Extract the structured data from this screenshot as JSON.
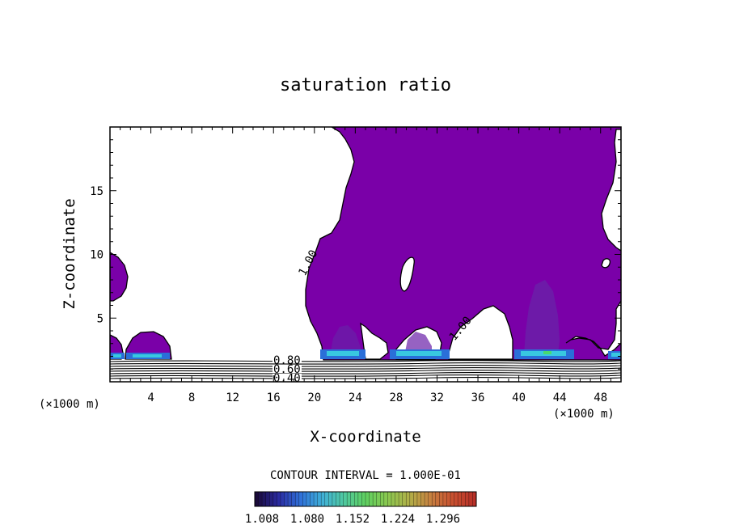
{
  "chart_data": {
    "type": "contour",
    "title": "saturation ratio",
    "xlabel": "X-coordinate",
    "ylabel": "Z-coordinate",
    "x_unit": "(×1000 m)",
    "y_unit": "(×1000 m)",
    "xlim": [
      0,
      50
    ],
    "ylim": [
      0,
      20
    ],
    "x_ticks": [
      4,
      8,
      12,
      16,
      20,
      24,
      28,
      32,
      36,
      40,
      44,
      48
    ],
    "y_ticks": [
      5,
      10,
      15
    ],
    "contour_interval": "CONTOUR INTERVAL = 1.000E-01",
    "contour_labels": [
      {
        "text": "1.00",
        "x": 19.0,
        "y": 9.3
      },
      {
        "text": "1.00",
        "x": 34.5,
        "y": 4.0
      },
      {
        "text": "0.80",
        "x": 17.0,
        "y": 1.45
      },
      {
        "text": "0.60",
        "x": 17.0,
        "y": 0.85
      },
      {
        "text": "0.40",
        "x": 17.0,
        "y": 0.25
      }
    ],
    "colorbar": {
      "tick_labels": [
        "1.008",
        "1.080",
        "1.152",
        "1.224",
        "1.296"
      ],
      "colors": [
        "#1a0a3a",
        "#2a2aa0",
        "#2f6fd8",
        "#3fb0d8",
        "#4fc8a0",
        "#5fd060",
        "#8ac850",
        "#b0b048",
        "#c88040",
        "#c85030",
        "#b83028"
      ]
    },
    "fill_color": "#7a00a8"
  }
}
